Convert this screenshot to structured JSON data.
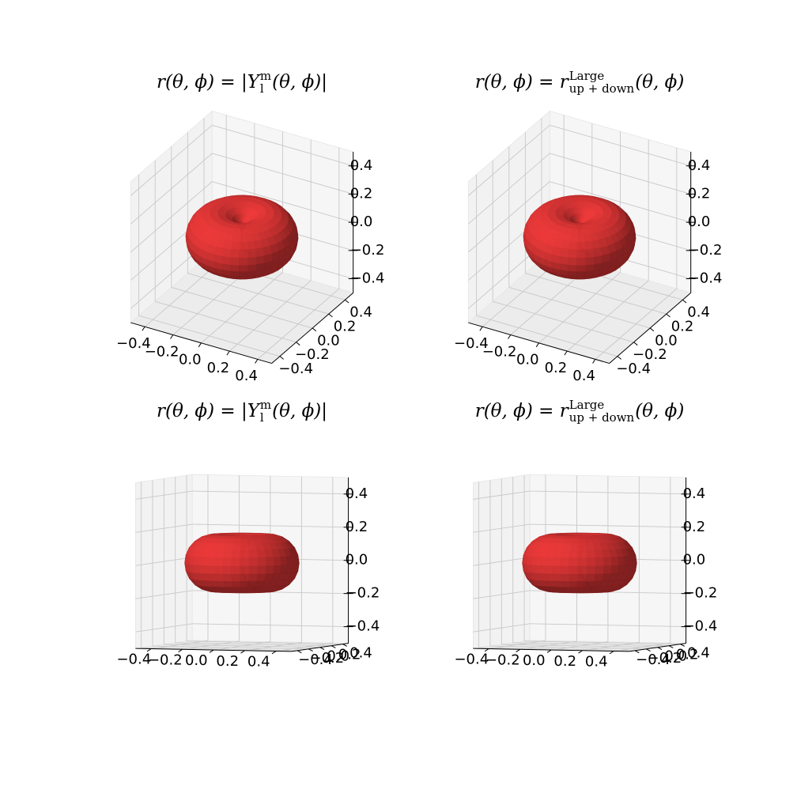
{
  "chart_data": [
    {
      "type": "surface3d",
      "title": [
        {
          "text": "r(θ, ϕ) = |Y"
        },
        {
          "sup": "m",
          "sub": "l"
        },
        {
          "text": "(θ, ϕ)|"
        }
      ],
      "view": {
        "elev": 30,
        "azim": -60
      },
      "amplitude": 0.345,
      "color": "#f23a3a",
      "xlim": [
        -0.5,
        0.5
      ],
      "ylim": [
        -0.5,
        0.5
      ],
      "zlim": [
        -0.5,
        0.5
      ],
      "xticks": [
        {
          "value": -0.4,
          "label": "−0.4"
        },
        {
          "value": -0.2,
          "label": "−0.2"
        },
        {
          "value": 0,
          "label": "0.0"
        },
        0.2,
        0.4
      ],
      "yticks": [
        {
          "value": -0.4,
          "label": "−0.4"
        },
        {
          "value": -0.2,
          "label": "−0.2"
        },
        {
          "value": 0,
          "label": "0.0"
        },
        0.2,
        0.4
      ],
      "zticks": [
        {
          "value": -0.4,
          "label": "−0.4"
        },
        {
          "value": -0.2,
          "label": "−0.2"
        },
        {
          "value": 0,
          "label": "0.0"
        },
        0.2,
        0.4
      ]
    },
    {
      "type": "surface3d",
      "title": [
        {
          "text": "r(θ, ϕ) = r"
        },
        {
          "sup": "Large",
          "sub": "up + down"
        },
        {
          "text": "(θ, ϕ)"
        }
      ],
      "view": {
        "elev": 30,
        "azim": -60
      },
      "amplitude": 0.345,
      "color": "#f23a3a",
      "xlim": [
        -0.5,
        0.5
      ],
      "ylim": [
        -0.5,
        0.5
      ],
      "zlim": [
        -0.5,
        0.5
      ],
      "xticks": [
        {
          "value": -0.4,
          "label": "−0.4"
        },
        {
          "value": -0.2,
          "label": "−0.2"
        },
        {
          "value": 0,
          "label": "0.0"
        },
        0.2,
        0.4
      ],
      "yticks": [
        {
          "value": -0.4,
          "label": "−0.4"
        },
        {
          "value": -0.2,
          "label": "−0.2"
        },
        {
          "value": 0,
          "label": "0.0"
        },
        0.2,
        0.4
      ],
      "zticks": [
        {
          "value": -0.4,
          "label": "−0.4"
        },
        {
          "value": -0.2,
          "label": "−0.2"
        },
        {
          "value": 0,
          "label": "0.0"
        },
        0.2,
        0.4
      ]
    },
    {
      "type": "surface3d",
      "title": [
        {
          "text": "r(θ, ϕ) = |Y"
        },
        {
          "sup": "m",
          "sub": "l"
        },
        {
          "text": "(θ, ϕ)|"
        }
      ],
      "view": {
        "elev": 3,
        "azim": -70
      },
      "amplitude": 0.345,
      "color": "#f23a3a",
      "xlim": [
        -0.5,
        0.5
      ],
      "ylim": [
        -0.5,
        0.5
      ],
      "zlim": [
        -0.5,
        0.5
      ],
      "xticks": [
        {
          "value": -0.4,
          "label": "−0.4"
        },
        {
          "value": -0.2,
          "label": "−0.2"
        },
        {
          "value": 0,
          "label": "0.0"
        },
        0.2,
        0.4
      ],
      "yticks": [
        {
          "value": -0.4,
          "label": "−0.4"
        },
        {
          "value": -0.2,
          "label": "−0.2"
        },
        {
          "value": 0,
          "label": "0.0"
        },
        0.2,
        0.4
      ],
      "zticks": [
        {
          "value": -0.4,
          "label": "−0.4"
        },
        {
          "value": -0.2,
          "label": "−0.2"
        },
        {
          "value": 0,
          "label": "0.0"
        },
        0.2,
        0.4
      ]
    },
    {
      "type": "surface3d",
      "title": [
        {
          "text": "r(θ, ϕ) = r"
        },
        {
          "sup": "Large",
          "sub": "up + down"
        },
        {
          "text": "(θ, ϕ)"
        }
      ],
      "view": {
        "elev": 3,
        "azim": -70
      },
      "amplitude": 0.345,
      "color": "#f23a3a",
      "xlim": [
        -0.5,
        0.5
      ],
      "ylim": [
        -0.5,
        0.5
      ],
      "zlim": [
        -0.5,
        0.5
      ],
      "xticks": [
        {
          "value": -0.4,
          "label": "−0.4"
        },
        {
          "value": -0.2,
          "label": "−0.2"
        },
        {
          "value": 0,
          "label": "0.0"
        },
        0.2,
        0.4
      ],
      "yticks": [
        {
          "value": -0.4,
          "label": "−0.4"
        },
        {
          "value": -0.2,
          "label": "−0.2"
        },
        {
          "value": 0,
          "label": "0.0"
        },
        0.2,
        0.4
      ],
      "zticks": [
        {
          "value": -0.4,
          "label": "−0.4"
        },
        {
          "value": -0.2,
          "label": "−0.2"
        },
        {
          "value": 0,
          "label": "0.0"
        },
        0.2,
        0.4
      ]
    }
  ]
}
